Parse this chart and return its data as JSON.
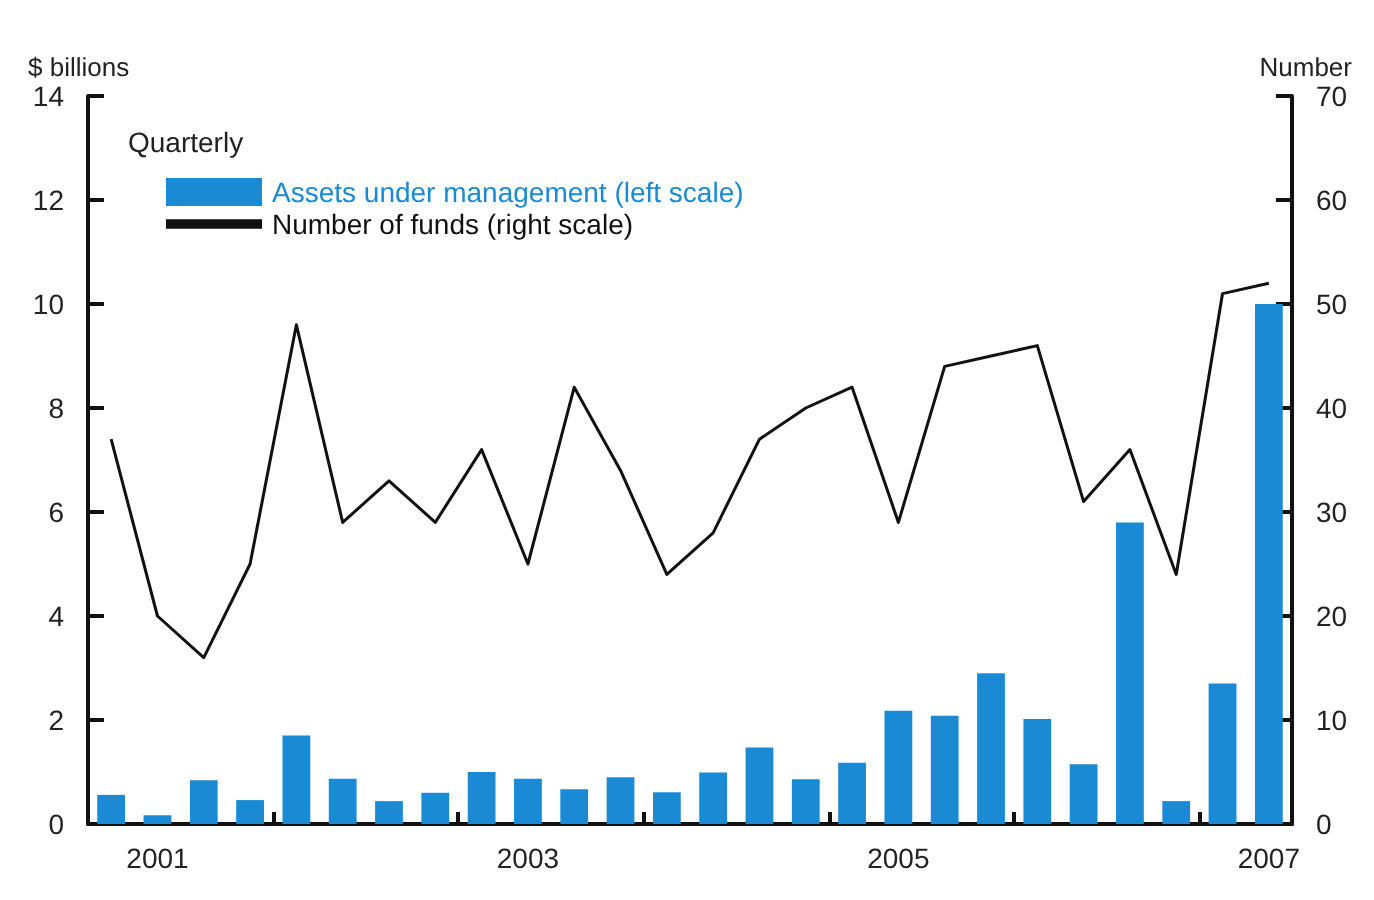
{
  "chart_data": {
    "type": "bar",
    "legend_title": "Quarterly",
    "ylabel": "$ billions",
    "y2label": "Number",
    "categories": [
      null,
      "2001",
      null,
      null,
      null,
      null,
      null,
      null,
      null,
      "2003",
      null,
      null,
      null,
      null,
      null,
      null,
      null,
      "2005",
      null,
      null,
      null,
      null,
      null,
      null,
      null,
      "2007"
    ],
    "series": [
      {
        "name": "Assets under management (left scale)",
        "color": "#1a8ad4",
        "values": [
          0.56,
          0.17,
          0.84,
          0.46,
          1.7,
          0.87,
          0.44,
          0.6,
          1.0,
          0.87,
          0.67,
          0.9,
          0.61,
          0.99,
          1.47,
          0.86,
          1.18,
          2.18,
          2.08,
          2.9,
          2.02,
          1.15,
          5.8,
          0.44,
          2.7,
          10.0
        ]
      },
      {
        "name": "Number of funds (right scale)",
        "type": "line",
        "axis": "y2",
        "color": "#111111",
        "values": [
          37,
          20,
          16,
          25,
          48,
          29,
          33,
          29,
          36,
          25,
          42,
          34,
          24,
          28,
          37,
          40,
          42,
          29,
          44,
          45,
          46,
          31,
          36,
          24,
          51,
          52
        ]
      }
    ],
    "ylim": [
      0,
      14
    ],
    "yticks": [
      0,
      2,
      4,
      6,
      8,
      10,
      12,
      14
    ],
    "y2lim": [
      0,
      70
    ],
    "y2ticks": [
      0,
      10,
      20,
      30,
      40,
      50,
      60,
      70
    ],
    "grid": false,
    "legend": "top left",
    "marker": "none"
  }
}
